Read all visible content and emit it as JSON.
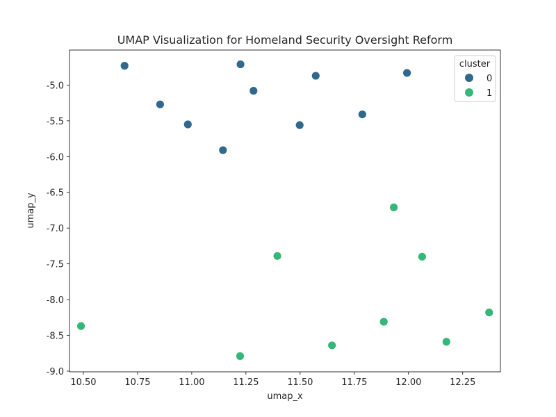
{
  "chart_data": {
    "type": "scatter",
    "title": "UMAP Visualization for Homeland Security Oversight Reform",
    "xlabel": "umap_x",
    "ylabel": "umap_y",
    "xlim": [
      10.436,
      12.424
    ],
    "ylim": [
      -9.01,
      -4.51
    ],
    "xticks": [
      "10.50",
      "10.75",
      "11.00",
      "11.25",
      "11.50",
      "11.75",
      "12.00",
      "12.25"
    ],
    "yticks": [
      "-5.0",
      "-5.5",
      "-6.0",
      "-6.5",
      "-7.0",
      "-7.5",
      "-8.0",
      "-8.5",
      "-9.0"
    ],
    "grid": false,
    "legend": {
      "title": "cluster",
      "placement": "top-right",
      "entries": [
        "0",
        "1"
      ]
    },
    "series": [
      {
        "name": "0",
        "color": "#31688e",
        "points": [
          {
            "x": 10.69,
            "y": -4.73
          },
          {
            "x": 11.225,
            "y": -4.71
          },
          {
            "x": 11.572,
            "y": -4.87
          },
          {
            "x": 11.993,
            "y": -4.83
          },
          {
            "x": 11.285,
            "y": -5.08
          },
          {
            "x": 10.854,
            "y": -5.27
          },
          {
            "x": 10.982,
            "y": -5.55
          },
          {
            "x": 11.498,
            "y": -5.56
          },
          {
            "x": 11.787,
            "y": -5.41
          },
          {
            "x": 11.144,
            "y": -5.91
          }
        ]
      },
      {
        "name": "1",
        "color": "#35b779",
        "points": [
          {
            "x": 11.932,
            "y": -6.71
          },
          {
            "x": 11.395,
            "y": -7.39
          },
          {
            "x": 12.063,
            "y": -7.4
          },
          {
            "x": 10.489,
            "y": -8.37
          },
          {
            "x": 11.886,
            "y": -8.31
          },
          {
            "x": 12.372,
            "y": -8.18
          },
          {
            "x": 12.175,
            "y": -8.59
          },
          {
            "x": 11.647,
            "y": -8.64
          },
          {
            "x": 11.223,
            "y": -8.79
          }
        ]
      }
    ]
  }
}
